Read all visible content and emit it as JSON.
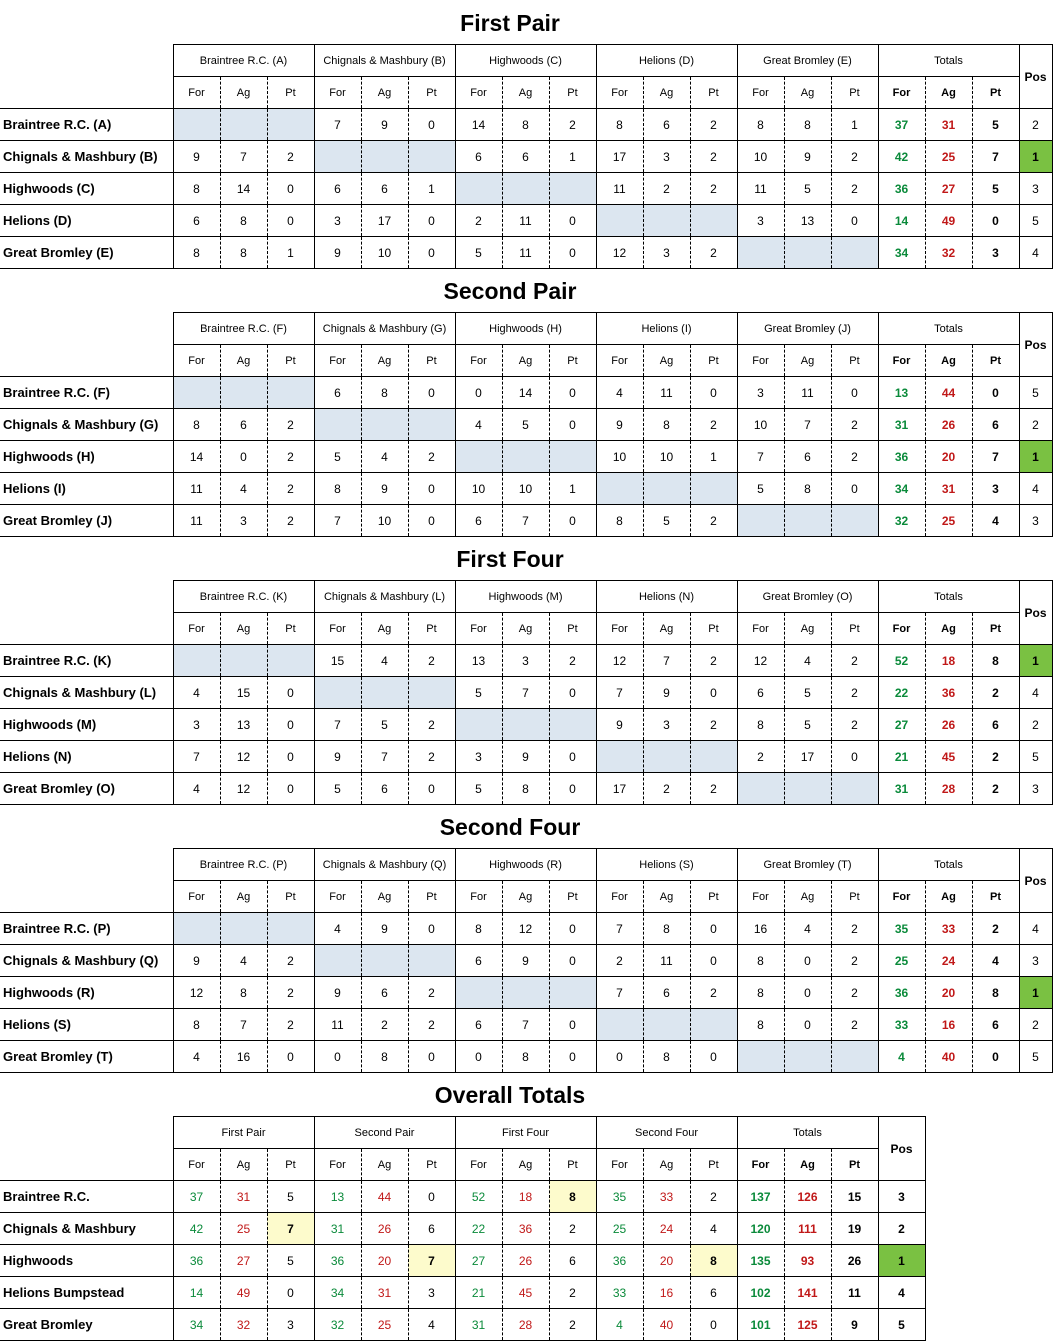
{
  "tables": [
    {
      "title": "First Pair",
      "groups": [
        "Braintree R.C. (A)",
        "Chignals & Mashbury (B)",
        "Highwoods (C)",
        "Helions (D)",
        "Great Bromley (E)"
      ],
      "totals_label": "Totals",
      "pos_label": "Pos",
      "sub": [
        "For",
        "Ag",
        "Pt"
      ],
      "rows": [
        {
          "team": "Braintree R.C. (A)",
          "cells": [
            null,
            [
              7,
              9,
              0
            ],
            [
              14,
              8,
              2
            ],
            [
              8,
              6,
              2
            ],
            [
              8,
              8,
              1
            ]
          ],
          "totals": [
            37,
            31,
            5
          ],
          "pos": 2
        },
        {
          "team": "Chignals & Mashbury (B)",
          "cells": [
            [
              9,
              7,
              2
            ],
            null,
            [
              6,
              6,
              1
            ],
            [
              17,
              3,
              2
            ],
            [
              10,
              9,
              2
            ]
          ],
          "totals": [
            42,
            25,
            7
          ],
          "pos": 1
        },
        {
          "team": "Highwoods (C)",
          "cells": [
            [
              8,
              14,
              0
            ],
            [
              6,
              6,
              1
            ],
            null,
            [
              11,
              2,
              2
            ],
            [
              11,
              5,
              2
            ]
          ],
          "totals": [
            36,
            27,
            5
          ],
          "pos": 3
        },
        {
          "team": "Helions (D)",
          "cells": [
            [
              6,
              8,
              0
            ],
            [
              3,
              17,
              0
            ],
            [
              2,
              11,
              0
            ],
            null,
            [
              3,
              13,
              0
            ]
          ],
          "totals": [
            14,
            49,
            0
          ],
          "pos": 5
        },
        {
          "team": "Great Bromley (E)",
          "cells": [
            [
              8,
              8,
              1
            ],
            [
              9,
              10,
              0
            ],
            [
              5,
              11,
              0
            ],
            [
              12,
              3,
              2
            ],
            null
          ],
          "totals": [
            34,
            32,
            3
          ],
          "pos": 4
        }
      ]
    },
    {
      "title": "Second Pair",
      "groups": [
        "Braintree R.C. (F)",
        "Chignals & Mashbury (G)",
        "Highwoods (H)",
        "Helions (I)",
        "Great Bromley (J)"
      ],
      "totals_label": "Totals",
      "pos_label": "Pos",
      "sub": [
        "For",
        "Ag",
        "Pt"
      ],
      "rows": [
        {
          "team": "Braintree R.C. (F)",
          "cells": [
            null,
            [
              6,
              8,
              0
            ],
            [
              0,
              14,
              0
            ],
            [
              4,
              11,
              0
            ],
            [
              3,
              11,
              0
            ]
          ],
          "totals": [
            13,
            44,
            0
          ],
          "pos": 5
        },
        {
          "team": "Chignals & Mashbury (G)",
          "cells": [
            [
              8,
              6,
              2
            ],
            null,
            [
              4,
              5,
              0
            ],
            [
              9,
              8,
              2
            ],
            [
              10,
              7,
              2
            ]
          ],
          "totals": [
            31,
            26,
            6
          ],
          "pos": 2
        },
        {
          "team": "Highwoods (H)",
          "cells": [
            [
              14,
              0,
              2
            ],
            [
              5,
              4,
              2
            ],
            null,
            [
              10,
              10,
              1
            ],
            [
              7,
              6,
              2
            ]
          ],
          "totals": [
            36,
            20,
            7
          ],
          "pos": 1
        },
        {
          "team": "Helions (I)",
          "cells": [
            [
              11,
              4,
              2
            ],
            [
              8,
              9,
              0
            ],
            [
              10,
              10,
              1
            ],
            null,
            [
              5,
              8,
              0
            ]
          ],
          "totals": [
            34,
            31,
            3
          ],
          "pos": 4
        },
        {
          "team": "Great Bromley (J)",
          "cells": [
            [
              11,
              3,
              2
            ],
            [
              7,
              10,
              0
            ],
            [
              6,
              7,
              0
            ],
            [
              8,
              5,
              2
            ],
            null
          ],
          "totals": [
            32,
            25,
            4
          ],
          "pos": 3
        }
      ]
    },
    {
      "title": "First Four",
      "groups": [
        "Braintree R.C. (K)",
        "Chignals & Mashbury (L)",
        "Highwoods (M)",
        "Helions (N)",
        "Great Bromley (O)"
      ],
      "totals_label": "Totals",
      "pos_label": "Pos",
      "sub": [
        "For",
        "Ag",
        "Pt"
      ],
      "rows": [
        {
          "team": "Braintree R.C. (K)",
          "cells": [
            null,
            [
              15,
              4,
              2
            ],
            [
              13,
              3,
              2
            ],
            [
              12,
              7,
              2
            ],
            [
              12,
              4,
              2
            ]
          ],
          "totals": [
            52,
            18,
            8
          ],
          "pos": 1
        },
        {
          "team": "Chignals & Mashbury (L)",
          "cells": [
            [
              4,
              15,
              0
            ],
            null,
            [
              5,
              7,
              0
            ],
            [
              7,
              9,
              0
            ],
            [
              6,
              5,
              2
            ]
          ],
          "totals": [
            22,
            36,
            2
          ],
          "pos": 4
        },
        {
          "team": "Highwoods (M)",
          "cells": [
            [
              3,
              13,
              0
            ],
            [
              7,
              5,
              2
            ],
            null,
            [
              9,
              3,
              2
            ],
            [
              8,
              5,
              2
            ]
          ],
          "totals": [
            27,
            26,
            6
          ],
          "pos": 2
        },
        {
          "team": "Helions (N)",
          "cells": [
            [
              7,
              12,
              0
            ],
            [
              9,
              7,
              2
            ],
            [
              3,
              9,
              0
            ],
            null,
            [
              2,
              17,
              0
            ]
          ],
          "totals": [
            21,
            45,
            2
          ],
          "pos": 5
        },
        {
          "team": "Great Bromley (O)",
          "cells": [
            [
              4,
              12,
              0
            ],
            [
              5,
              6,
              0
            ],
            [
              5,
              8,
              0
            ],
            [
              17,
              2,
              2
            ],
            null
          ],
          "totals": [
            31,
            28,
            2
          ],
          "pos": 3
        }
      ]
    },
    {
      "title": "Second Four",
      "groups": [
        "Braintree R.C. (P)",
        "Chignals & Mashbury (Q)",
        "Highwoods (R)",
        "Helions (S)",
        "Great Bromley (T)"
      ],
      "totals_label": "Totals",
      "pos_label": "Pos",
      "sub": [
        "For",
        "Ag",
        "Pt"
      ],
      "rows": [
        {
          "team": "Braintree R.C. (P)",
          "cells": [
            null,
            [
              4,
              9,
              0
            ],
            [
              8,
              12,
              0
            ],
            [
              7,
              8,
              0
            ],
            [
              16,
              4,
              2
            ]
          ],
          "totals": [
            35,
            33,
            2
          ],
          "pos": 4
        },
        {
          "team": "Chignals & Mashbury (Q)",
          "cells": [
            [
              9,
              4,
              2
            ],
            null,
            [
              6,
              9,
              0
            ],
            [
              2,
              11,
              0
            ],
            [
              8,
              0,
              2
            ]
          ],
          "totals": [
            25,
            24,
            4
          ],
          "pos": 3
        },
        {
          "team": "Highwoods (R)",
          "cells": [
            [
              12,
              8,
              2
            ],
            [
              9,
              6,
              2
            ],
            null,
            [
              7,
              6,
              2
            ],
            [
              8,
              0,
              2
            ]
          ],
          "totals": [
            36,
            20,
            8
          ],
          "pos": 1
        },
        {
          "team": "Helions (S)",
          "cells": [
            [
              8,
              7,
              2
            ],
            [
              11,
              2,
              2
            ],
            [
              6,
              7,
              0
            ],
            null,
            [
              8,
              0,
              2
            ]
          ],
          "totals": [
            33,
            16,
            6
          ],
          "pos": 2
        },
        {
          "team": "Great Bromley (T)",
          "cells": [
            [
              4,
              16,
              0
            ],
            [
              0,
              8,
              0
            ],
            [
              0,
              8,
              0
            ],
            [
              0,
              8,
              0
            ],
            null
          ],
          "totals": [
            4,
            40,
            0
          ],
          "pos": 5
        }
      ]
    }
  ],
  "overall": {
    "title": "Overall Totals",
    "groups": [
      "First Pair",
      "Second Pair",
      "First Four",
      "Second Four"
    ],
    "totals_label": "Totals",
    "pos_label": "Pos",
    "sub": [
      "For",
      "Ag",
      "Pt"
    ],
    "rows": [
      {
        "team": "Braintree R.C.",
        "cells": [
          [
            37,
            31,
            5
          ],
          [
            13,
            44,
            0
          ],
          [
            52,
            18,
            8
          ],
          [
            35,
            33,
            2
          ]
        ],
        "highlight": [
          2
        ],
        "totals": [
          137,
          126,
          15
        ],
        "pos": 3
      },
      {
        "team": "Chignals & Mashbury",
        "cells": [
          [
            42,
            25,
            7
          ],
          [
            31,
            26,
            6
          ],
          [
            22,
            36,
            2
          ],
          [
            25,
            24,
            4
          ]
        ],
        "highlight": [
          0
        ],
        "totals": [
          120,
          111,
          19
        ],
        "pos": 2
      },
      {
        "team": "Highwoods",
        "cells": [
          [
            36,
            27,
            5
          ],
          [
            36,
            20,
            7
          ],
          [
            27,
            26,
            6
          ],
          [
            36,
            20,
            8
          ]
        ],
        "highlight": [
          1,
          3
        ],
        "totals": [
          135,
          93,
          26
        ],
        "pos": 1
      },
      {
        "team": "Helions Bumpstead",
        "cells": [
          [
            14,
            49,
            0
          ],
          [
            34,
            31,
            3
          ],
          [
            21,
            45,
            2
          ],
          [
            33,
            16,
            6
          ]
        ],
        "highlight": [],
        "totals": [
          102,
          141,
          11
        ],
        "pos": 4
      },
      {
        "team": "Great Bromley",
        "cells": [
          [
            34,
            32,
            3
          ],
          [
            32,
            25,
            4
          ],
          [
            31,
            28,
            2
          ],
          [
            4,
            40,
            0
          ]
        ],
        "highlight": [],
        "totals": [
          101,
          125,
          9
        ],
        "pos": 5
      }
    ]
  },
  "colors": {
    "for": "#0a8a3a",
    "against": "#c01818",
    "winner": "#7ac142",
    "empty_cell": "#dce6f0",
    "highlight": "#fdfbcc"
  }
}
